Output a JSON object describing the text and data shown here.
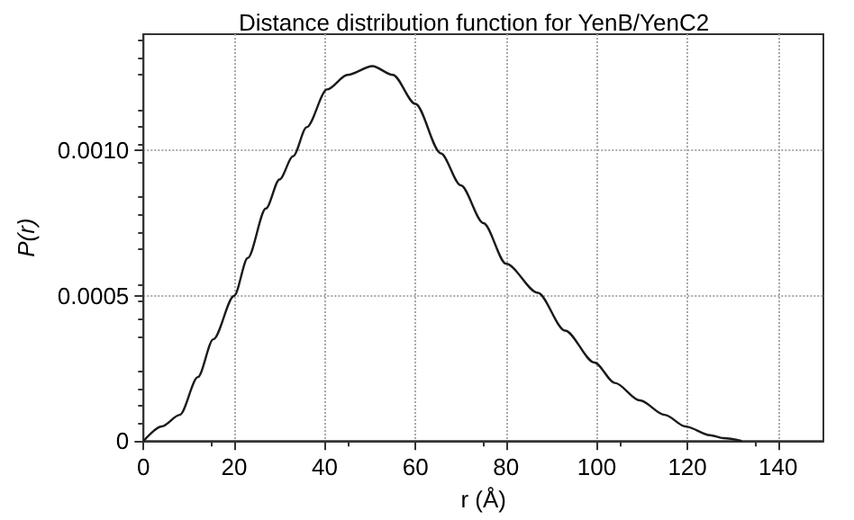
{
  "chart_data": {
    "type": "line",
    "title": "Distance distribution function for YenB/YenC2",
    "xlabel": "r (Å)",
    "ylabel": "P(r)",
    "x": [
      0,
      4,
      8,
      12,
      15.4,
      20,
      23,
      27,
      30,
      33,
      36,
      40.5,
      45,
      50.5,
      55,
      60,
      65.6,
      70,
      75,
      80,
      87,
      93,
      99.5,
      104,
      109.5,
      115,
      119.6,
      125,
      128,
      132
    ],
    "series": [
      {
        "color": "#1a1a1a",
        "values": [
          0,
          5e-05,
          9e-05,
          0.00022,
          0.00035,
          0.0005,
          0.00063,
          0.0008,
          0.0009,
          0.00098,
          0.00108,
          0.00121,
          0.00126,
          0.00129,
          0.00126,
          0.00116,
          0.00099,
          0.00088,
          0.00075,
          0.00061,
          0.00051,
          0.00038,
          0.00027,
          0.0002,
          0.00014,
          9e-05,
          5e-05,
          2e-05,
          1e-05,
          0
        ]
      }
    ],
    "xlim": [
      0,
      150
    ],
    "xticks": [
      0,
      20,
      40,
      60,
      80,
      100,
      120,
      140
    ],
    "ylim": [
      0,
      0.0014
    ],
    "yticks": [
      0,
      0.0005,
      {
        "value": 0.001,
        "label": "0.0010"
      }
    ],
    "grid": true,
    "marker": "none",
    "line_style": "solid"
  }
}
